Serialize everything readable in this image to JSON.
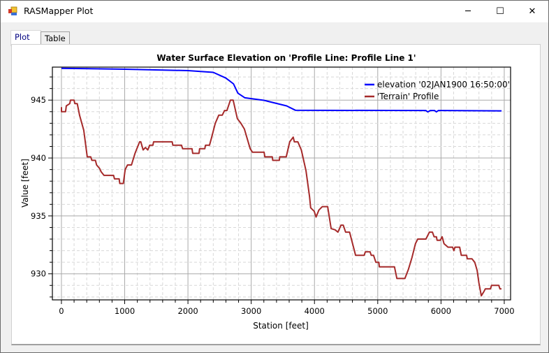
{
  "window": {
    "title": "RASMapper Plot",
    "icon": "rasmapper-app-icon",
    "controls": {
      "minimize": "─",
      "maximize": "☐",
      "close": "✕"
    }
  },
  "tabs": [
    {
      "label": "Plot",
      "active": true
    },
    {
      "label": "Table",
      "active": false
    }
  ],
  "chart_data": {
    "type": "line",
    "title": "Water Surface Elevation on 'Profile Line: Profile Line 1'",
    "xlabel": "Station [feet]",
    "ylabel": "Value [feet]",
    "xlim": [
      -143,
      7100
    ],
    "ylim": [
      927.75,
      947.85
    ],
    "xticks": [
      0,
      1000,
      2000,
      3000,
      4000,
      5000,
      6000,
      7000
    ],
    "yticks": [
      930,
      935,
      940,
      945
    ],
    "grid": true,
    "legend": "top-right",
    "series": [
      {
        "name": "elevation '02JAN1900 16:50:00'",
        "color": "#0000ff",
        "x": [
          0,
          1000,
          2000,
          2400,
          2600,
          2720,
          2790,
          2900,
          3200,
          3560,
          3700,
          5760,
          5790,
          5830,
          5900,
          5927,
          5960,
          6958
        ],
        "y": [
          947.75,
          947.67,
          947.55,
          947.4,
          946.9,
          946.4,
          945.6,
          945.2,
          944.98,
          944.5,
          944.12,
          944.1,
          943.98,
          944.1,
          944.1,
          943.98,
          944.1,
          944.07
        ]
      },
      {
        "name": "'Terrain' Profile",
        "color": "#a52a2a",
        "x": [
          0,
          0,
          66,
          77,
          132,
          143,
          199,
          213,
          250,
          287,
          353,
          408,
          463,
          482,
          537,
          556,
          603,
          629,
          673,
          824,
          839,
          913,
          923,
          979,
          1008,
          1045,
          1107,
          1163,
          1236,
          1255,
          1291,
          1328,
          1365,
          1394,
          1446,
          1457,
          1751,
          1762,
          1898,
          1916,
          2064,
          2075,
          2174,
          2185,
          2266,
          2277,
          2340,
          2376,
          2432,
          2487,
          2542,
          2579,
          2616,
          2671,
          2715,
          2781,
          2837,
          2892,
          2984,
          3020,
          3204,
          3216,
          3333,
          3341,
          3444,
          3451,
          3554,
          3609,
          3664,
          3682,
          3737,
          3792,
          3866,
          3921,
          3940,
          3996,
          4025,
          4069,
          4124,
          4208,
          4264,
          4327,
          4371,
          4419,
          4455,
          4492,
          4555,
          4650,
          4786,
          4804,
          4879,
          4897,
          4934,
          4970,
          5018,
          5025,
          5265,
          5302,
          5430,
          5486,
          5541,
          5596,
          5633,
          5762,
          5817,
          5865,
          5891,
          5927,
          5938,
          5989,
          6018,
          6048,
          6111,
          6184,
          6203,
          6221,
          6295,
          6320,
          6404,
          6415,
          6489,
          6534,
          6571,
          6600,
          6637,
          6681,
          6700,
          6781,
          6799,
          6913,
          6932,
          6957
        ],
        "y": [
          944.4,
          944.0,
          944.0,
          944.5,
          944.7,
          945.0,
          945.0,
          944.7,
          944.7,
          943.7,
          942.4,
          940.1,
          940.1,
          939.8,
          939.8,
          939.4,
          939.1,
          938.8,
          938.5,
          938.5,
          938.2,
          938.2,
          937.8,
          937.8,
          939.0,
          939.4,
          939.4,
          940.4,
          941.4,
          941.4,
          940.7,
          940.9,
          940.7,
          941.1,
          941.1,
          941.4,
          941.4,
          941.1,
          941.1,
          940.8,
          940.8,
          940.4,
          940.4,
          940.8,
          940.8,
          941.1,
          941.1,
          941.8,
          943.0,
          943.7,
          943.7,
          944.1,
          944.1,
          945.0,
          945.0,
          943.4,
          943.0,
          942.5,
          940.8,
          940.5,
          940.5,
          940.1,
          940.1,
          939.8,
          939.8,
          940.1,
          940.1,
          941.4,
          941.8,
          941.4,
          941.4,
          940.7,
          938.9,
          936.7,
          935.7,
          935.4,
          934.9,
          935.5,
          935.8,
          935.8,
          933.9,
          933.8,
          933.6,
          934.2,
          934.2,
          933.6,
          933.6,
          931.6,
          931.6,
          931.9,
          931.9,
          931.6,
          931.6,
          931.0,
          931.0,
          930.6,
          930.6,
          929.6,
          929.6,
          930.4,
          931.4,
          932.6,
          933.0,
          933.0,
          933.6,
          933.6,
          933.2,
          933.2,
          932.9,
          932.9,
          933.2,
          932.6,
          932.3,
          932.3,
          932.0,
          932.3,
          932.3,
          931.6,
          931.6,
          931.3,
          931.3,
          931.0,
          930.3,
          929.2,
          928.1,
          928.5,
          928.7,
          928.7,
          929.0,
          929.0,
          928.7,
          928.7
        ]
      }
    ]
  }
}
